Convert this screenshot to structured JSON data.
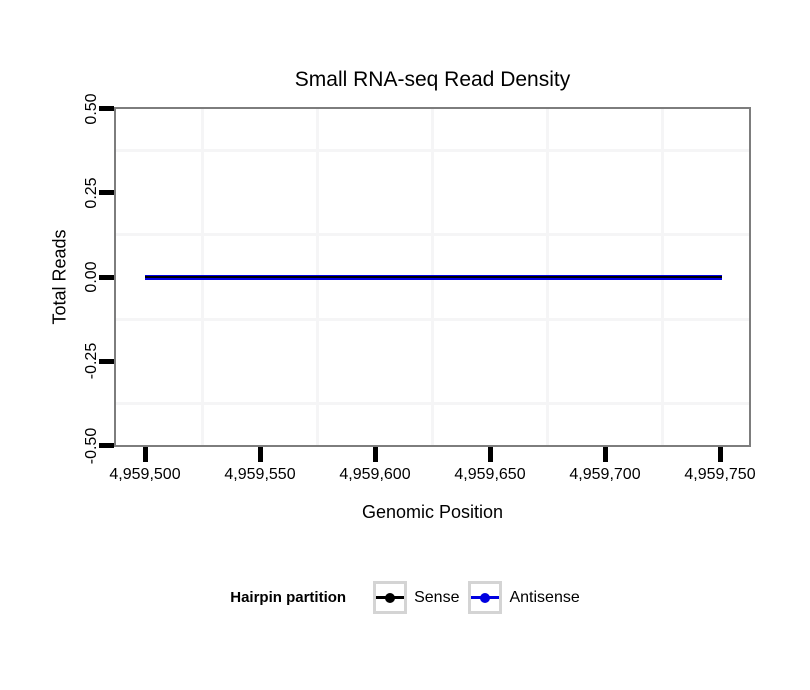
{
  "title": "Small RNA-seq Read Density",
  "chart_data": {
    "type": "line",
    "title": "Small RNA-seq Read Density",
    "xlabel": "Genomic Position",
    "ylabel": "Total Reads",
    "xlim": [
      4959487,
      4959763
    ],
    "ylim": [
      -0.5,
      0.5
    ],
    "grid": "faint minor gridlines only, at midpoints between ticks; white panel background; gray panel border",
    "x_ticks": {
      "values": [
        4959500,
        4959550,
        4959600,
        4959650,
        4959700,
        4959750
      ],
      "labels": [
        "4,959,500",
        "4,959,550",
        "4,959,600",
        "4,959,650",
        "4,959,700",
        "4,959,750"
      ]
    },
    "y_ticks": {
      "values": [
        0.5,
        0.25,
        0,
        -0.25,
        -0.5
      ],
      "labels": [
        "0.50",
        "0.25",
        "0.00",
        "-0.25",
        "-0.50"
      ]
    },
    "legend_position": "bottom",
    "series": [
      {
        "name": "Sense",
        "color": "#000000",
        "y": 0,
        "x_start": 4959500,
        "x_end": 4959751
      },
      {
        "name": "Antisense",
        "color": "#0000e0",
        "y": 0,
        "x_start": 4959500,
        "x_end": 4959751
      }
    ]
  },
  "legend": {
    "title": "Hairpin partition",
    "items": [
      {
        "label": "Sense",
        "color": "#000000"
      },
      {
        "label": "Antisense",
        "color": "#0000e0"
      }
    ]
  },
  "colors": {
    "panel_border": "#7d7d7d",
    "minor_gridline": "#f5f5f6",
    "tick": "#000000",
    "legend_key_border": "#d4d4d4",
    "background": "#ffffff"
  }
}
